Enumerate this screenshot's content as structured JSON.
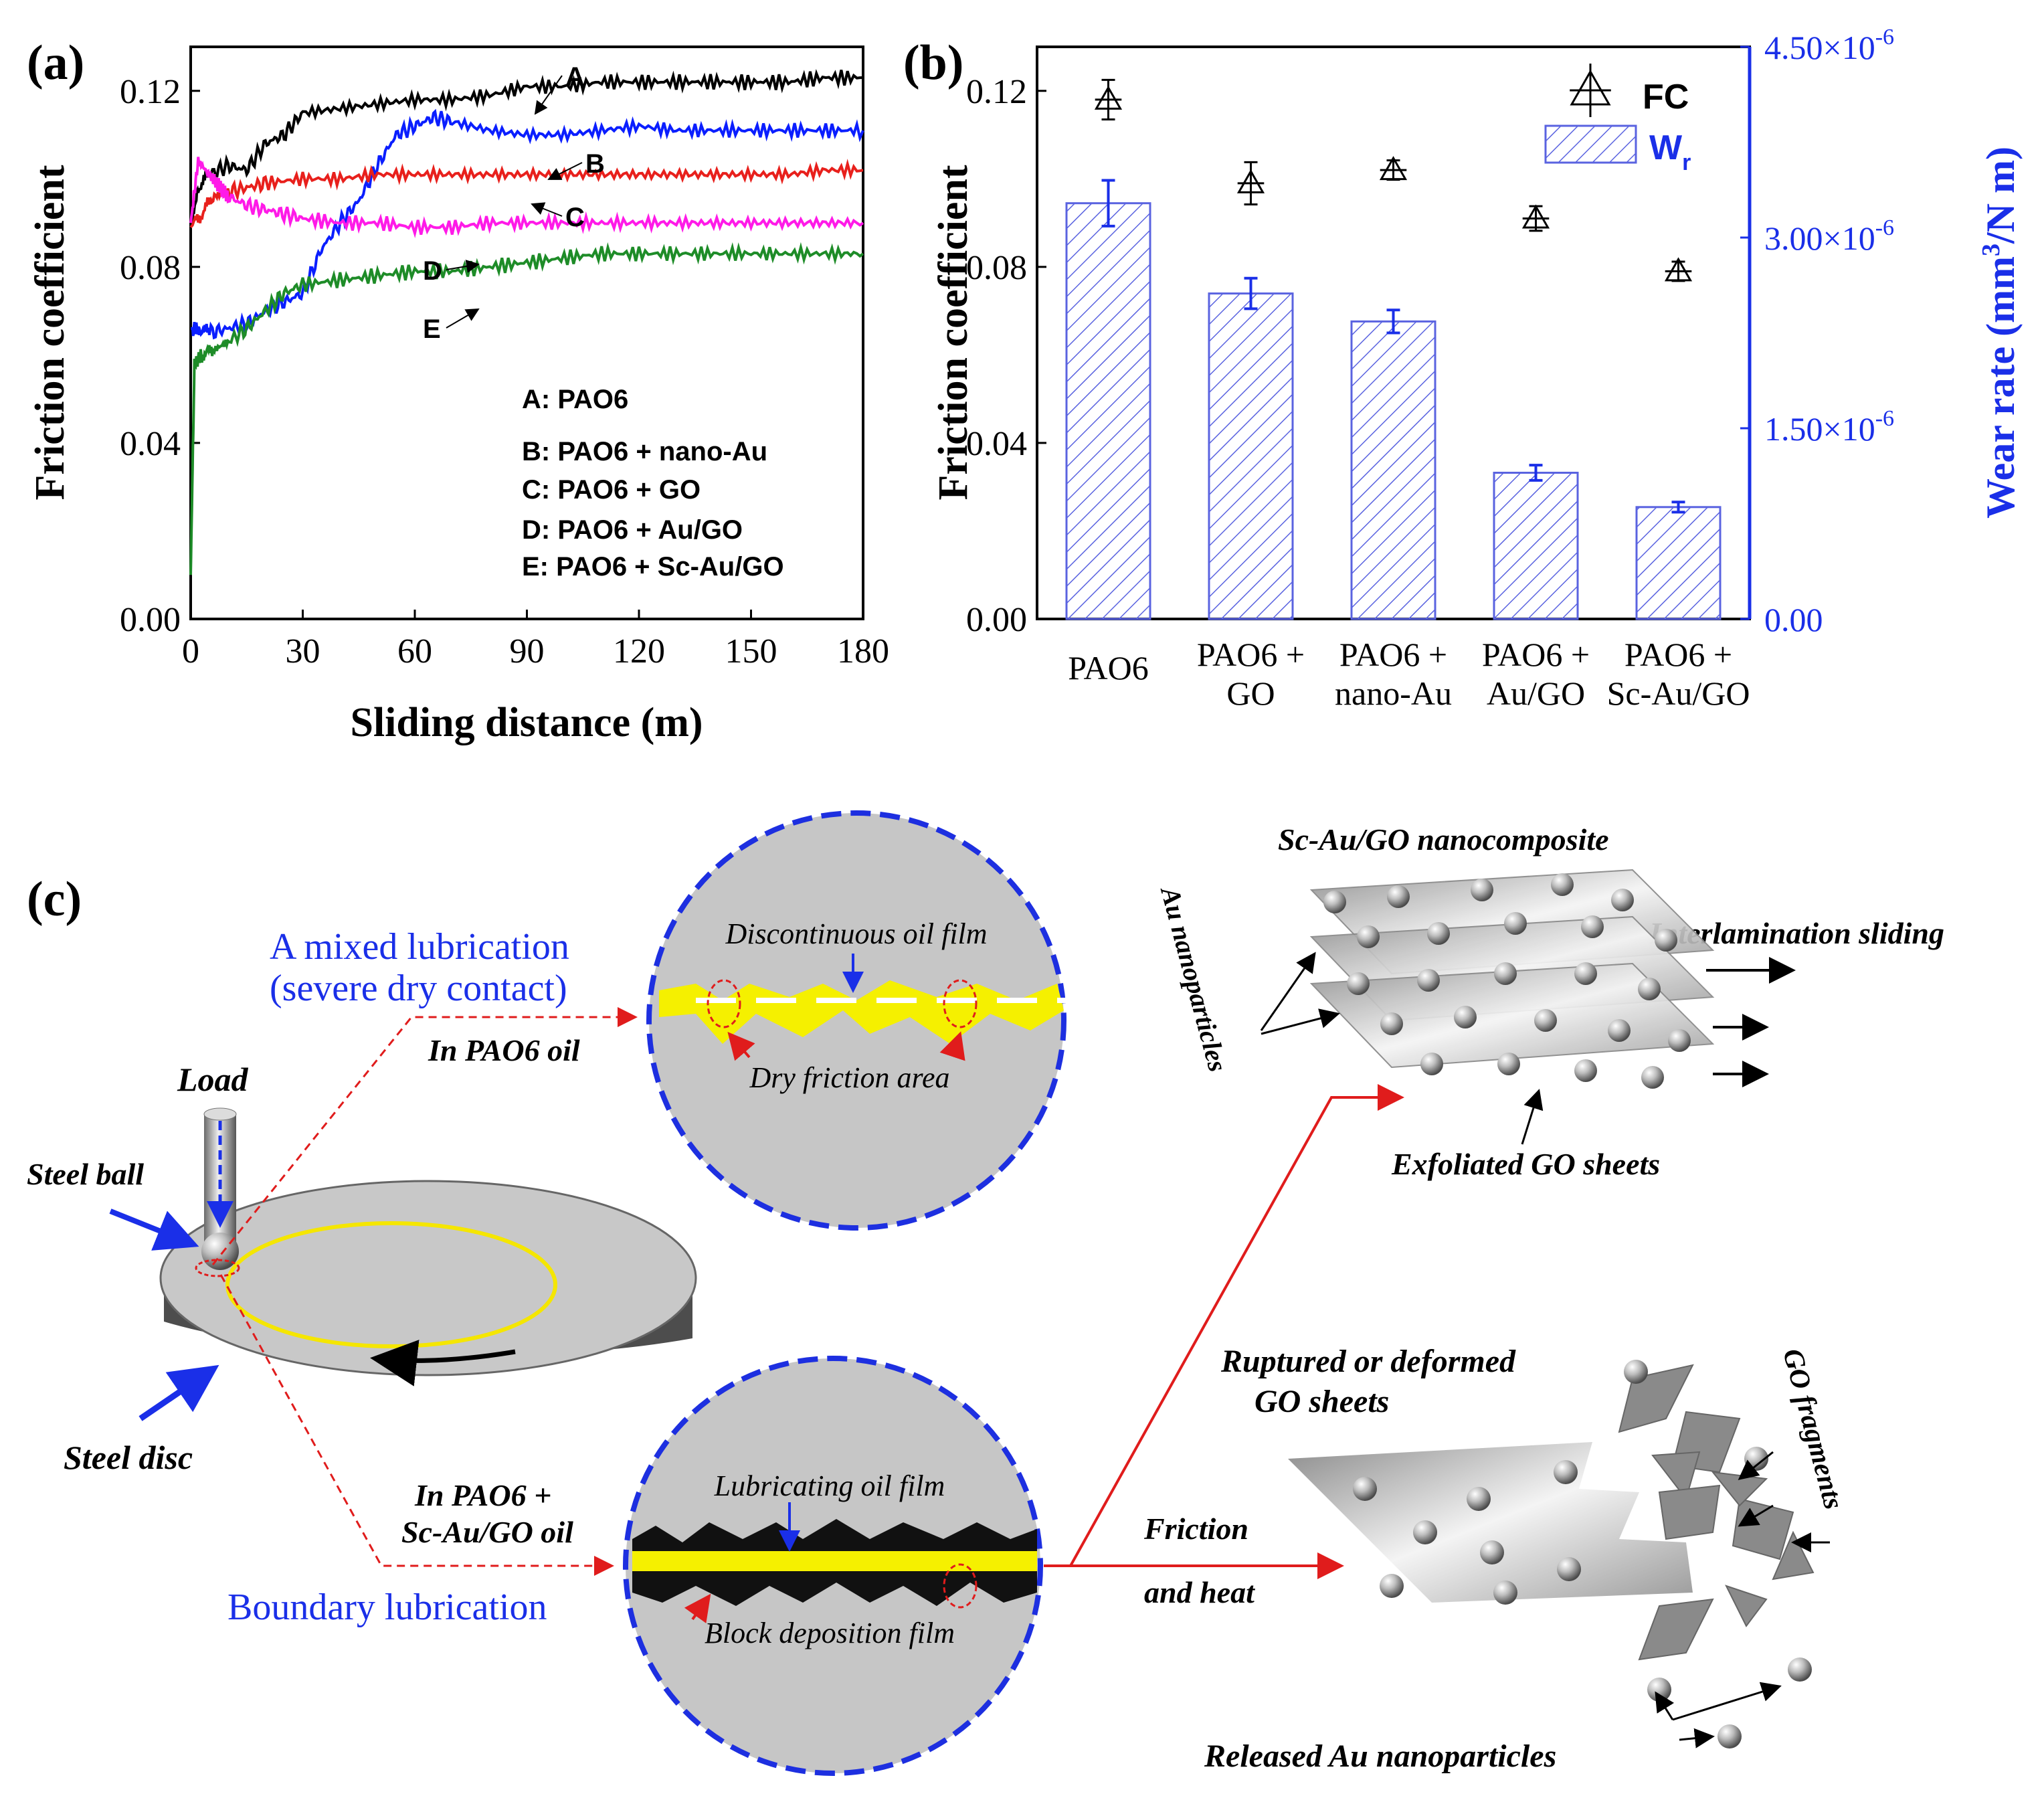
{
  "panel_labels": {
    "a": "(a)",
    "b": "(b)",
    "c": "(c)"
  },
  "colors": {
    "A": "#000000",
    "B": "#0a1eff",
    "C": "#e8201c",
    "D": "#ff1ae8",
    "E": "#1e8c28",
    "right_axis": "#1a2fe8",
    "bar_hatch": "#5a63e0",
    "film": "#f5f000",
    "circle_border": "#1d2fe0",
    "arrow_red": "#e01c1c",
    "arrow_blue": "#1a2fe8"
  },
  "chart_data": [
    {
      "panel": "(a)",
      "type": "line",
      "xlabel": "Sliding distance (m)",
      "ylabel": "Friction coefficient",
      "xlim": [
        0,
        180
      ],
      "ylim": [
        0,
        0.13
      ],
      "xticks": [
        "0",
        "30",
        "60",
        "90",
        "120",
        "150",
        "180"
      ],
      "yticks": [
        "0.00",
        "0.04",
        "0.08",
        "0.12"
      ],
      "curve_labels": [
        "A",
        "B",
        "C",
        "D",
        "E"
      ],
      "legend": [
        "A: PAO6",
        "B: PAO6 + nano-Au",
        "C: PAO6 + GO",
        "D: PAO6 + Au/GO",
        "E: PAO6 + Sc-Au/GO"
      ],
      "series": [
        {
          "key": "A",
          "x": [
            0,
            2,
            5,
            10,
            15,
            20,
            25,
            30,
            40,
            50,
            60,
            70,
            80,
            90,
            100,
            110,
            120,
            130,
            140,
            150,
            160,
            170,
            180
          ],
          "y": [
            0.089,
            0.098,
            0.101,
            0.103,
            0.102,
            0.108,
            0.11,
            0.115,
            0.116,
            0.117,
            0.118,
            0.118,
            0.119,
            0.121,
            0.121,
            0.122,
            0.122,
            0.122,
            0.122,
            0.122,
            0.122,
            0.123,
            0.123
          ]
        },
        {
          "key": "B",
          "x": [
            0,
            2,
            5,
            10,
            15,
            20,
            25,
            30,
            35,
            40,
            45,
            50,
            55,
            60,
            65,
            70,
            80,
            90,
            100,
            110,
            120,
            130,
            140,
            150,
            160,
            170,
            180
          ],
          "y": [
            0.066,
            0.066,
            0.065,
            0.066,
            0.067,
            0.07,
            0.072,
            0.074,
            0.084,
            0.09,
            0.095,
            0.103,
            0.11,
            0.112,
            0.114,
            0.113,
            0.111,
            0.11,
            0.11,
            0.111,
            0.112,
            0.111,
            0.111,
            0.111,
            0.111,
            0.111,
            0.111
          ]
        },
        {
          "key": "C",
          "x": [
            0,
            3,
            6,
            10,
            15,
            20,
            30,
            40,
            50,
            60,
            70,
            80,
            90,
            100,
            110,
            120,
            130,
            140,
            150,
            160,
            170,
            180
          ],
          "y": [
            0.089,
            0.092,
            0.096,
            0.097,
            0.098,
            0.099,
            0.1,
            0.1,
            0.101,
            0.101,
            0.101,
            0.101,
            0.101,
            0.101,
            0.101,
            0.101,
            0.101,
            0.101,
            0.101,
            0.101,
            0.102,
            0.102
          ]
        },
        {
          "key": "D",
          "x": [
            0,
            2,
            4,
            6,
            8,
            10,
            15,
            20,
            25,
            30,
            40,
            50,
            60,
            70,
            80,
            90,
            100,
            110,
            120,
            130,
            140,
            150,
            160,
            170,
            180
          ],
          "y": [
            0.09,
            0.104,
            0.102,
            0.1,
            0.098,
            0.096,
            0.094,
            0.093,
            0.092,
            0.091,
            0.09,
            0.09,
            0.089,
            0.089,
            0.09,
            0.09,
            0.09,
            0.09,
            0.09,
            0.09,
            0.09,
            0.09,
            0.09,
            0.09,
            0.09
          ]
        },
        {
          "key": "E",
          "x": [
            0,
            1,
            3,
            6,
            10,
            15,
            20,
            25,
            30,
            40,
            50,
            60,
            70,
            80,
            90,
            100,
            110,
            120,
            130,
            140,
            150,
            160,
            170,
            180
          ],
          "y": [
            0.01,
            0.058,
            0.06,
            0.061,
            0.063,
            0.066,
            0.07,
            0.074,
            0.076,
            0.077,
            0.078,
            0.079,
            0.079,
            0.08,
            0.081,
            0.082,
            0.083,
            0.083,
            0.083,
            0.083,
            0.083,
            0.083,
            0.083,
            0.083
          ]
        }
      ]
    },
    {
      "panel": "(b)",
      "type": "bar",
      "categories": [
        [
          "PAO6"
        ],
        [
          "PAO6 +",
          "GO"
        ],
        [
          "PAO6 +",
          "nano-Au"
        ],
        [
          "PAO6 +",
          "Au/GO"
        ],
        [
          "PAO6 +",
          "Sc-Au/GO"
        ]
      ],
      "ylabel": "Friction coefficient",
      "ylabel_right": [
        "Wear rate (mm",
        "3",
        "/N m)"
      ],
      "ylim": [
        0,
        0.13
      ],
      "yticks": [
        "0.00",
        "0.04",
        "0.08",
        "0.12"
      ],
      "ylim_right": [
        0,
        4.5e-06
      ],
      "yticks_right": [
        [
          "0.00",
          ""
        ],
        [
          "1.50×10",
          "-6"
        ],
        [
          "3.00×10",
          "-6"
        ],
        [
          "4.50×10",
          "-6"
        ]
      ],
      "legend": [
        [
          "FC",
          ""
        ],
        [
          "W",
          "r"
        ]
      ],
      "series": [
        {
          "name": "FC",
          "type": "scatter",
          "values": [
            0.118,
            0.099,
            0.102,
            0.091,
            0.079
          ],
          "err": [
            0.0045,
            0.0048,
            0.0022,
            0.0028,
            0.0022
          ]
        },
        {
          "name": "Wr",
          "type": "bar",
          "axis": "right",
          "values": [
            3.27e-06,
            2.56e-06,
            2.34e-06,
            1.15e-06,
            8.8e-07
          ],
          "err": [
            1.8e-07,
            1.2e-07,
            9e-08,
            6e-08,
            4e-08
          ]
        }
      ]
    }
  ],
  "schematic": {
    "load": "Load",
    "steel_ball": "Steel ball",
    "steel_disc": "Steel disc",
    "mixed_title_1": "A mixed lubrication",
    "mixed_title_2": "(severe dry contact)",
    "in_pao6": "In PAO6 oil",
    "discontinuous": "Discontinuous oil film",
    "dry_friction": "Dry friction area",
    "in_pao6_sc_1": "In PAO6 +",
    "in_pao6_sc_2": "Sc-Au/GO oil",
    "boundary": "Boundary lubrication",
    "lubricating": "Lubricating oil film",
    "block": "Block deposition film",
    "nanocomposite": "Sc-Au/GO nanocomposite",
    "au_nanoparticles": "Au nanoparticles",
    "interlamination": "Interlamination sliding",
    "exfoliated": "Exfoliated GO sheets",
    "friction": "Friction",
    "and_heat": "and heat",
    "ruptured_1": "Ruptured or deformed",
    "ruptured_2": "GO  sheets",
    "go_fragments": "GO fragments",
    "released": "Released Au nanoparticles"
  }
}
